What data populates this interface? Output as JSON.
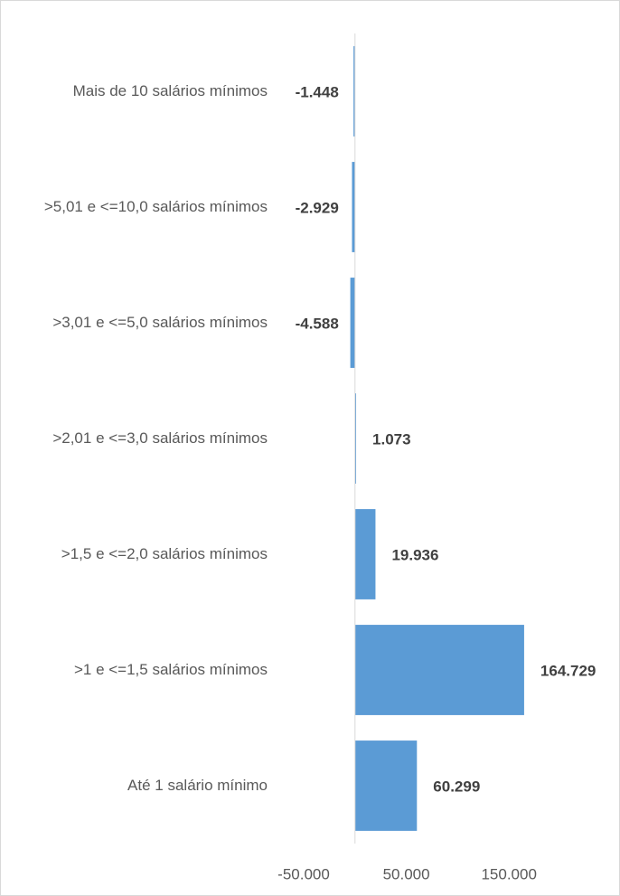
{
  "chart_data": {
    "type": "bar",
    "orientation": "horizontal",
    "color": "#5b9bd5",
    "categories": [
      "Mais de 10 salários mínimos",
      ">5,01 e <=10,0 salários mínimos",
      ">3,01 e <=5,0 salários mínimos",
      ">2,01 e <=3,0 salários mínimos",
      ">1,5 e <=2,0 salários mínimos",
      ">1 e <=1,5 salários mínimos",
      "Até 1 salário mínimo"
    ],
    "values": [
      -1448,
      -2929,
      -4588,
      1073,
      19936,
      164729,
      60299
    ],
    "value_labels": [
      "-1.448",
      "-2.929",
      "-4.588",
      "1.073",
      "19.936",
      "164.729",
      "60.299"
    ],
    "xlim": [
      -50000,
      200000
    ],
    "xticks": [
      {
        "value": -50000,
        "label": "-50.000"
      },
      {
        "value": 50000,
        "label": "50.000"
      },
      {
        "value": 150000,
        "label": "150.000"
      }
    ]
  }
}
